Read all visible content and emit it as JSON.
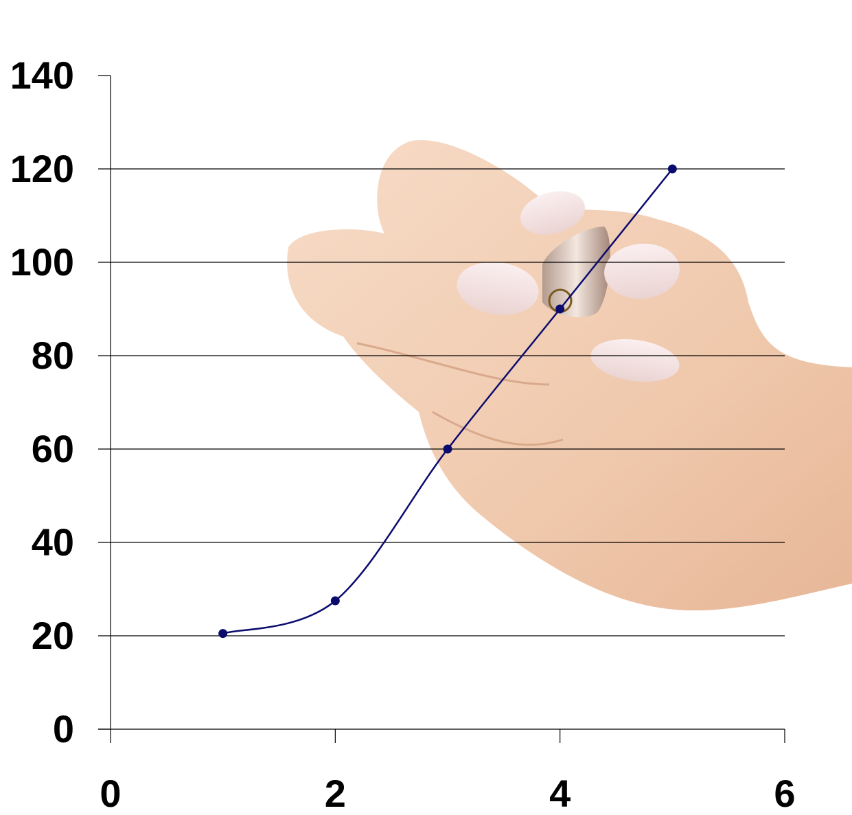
{
  "chart_data": {
    "type": "line",
    "title": "",
    "xlabel": "",
    "ylabel": "",
    "xlim": [
      0,
      6
    ],
    "ylim": [
      0,
      140
    ],
    "x_ticks": [
      0,
      2,
      4,
      6
    ],
    "y_ticks": [
      0,
      20,
      40,
      60,
      80,
      100,
      120,
      140
    ],
    "x_tick_labels": [
      "0",
      "2",
      "4",
      "6"
    ],
    "y_tick_labels": [
      "0",
      "20",
      "40",
      "60",
      "80",
      "100",
      "120",
      "140"
    ],
    "grid": "horizontal",
    "smooth": true,
    "legend": "none",
    "series": [
      {
        "color": "#0b0b6e",
        "points": [
          {
            "x": 1,
            "y": 20.5
          },
          {
            "x": 2,
            "y": 27.5
          },
          {
            "x": 3,
            "y": 60
          },
          {
            "x": 4,
            "y": 90
          },
          {
            "x": 5,
            "y": 120
          }
        ]
      }
    ],
    "background_image": "hand-holding-pen"
  }
}
